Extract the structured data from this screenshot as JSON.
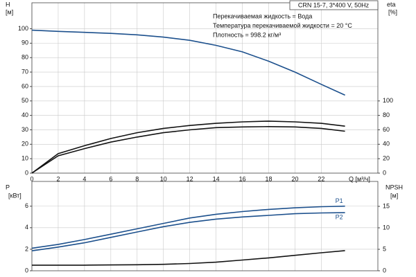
{
  "chart_data": [
    {
      "type": "line",
      "title": "CRN 15-7, 3*400 V, 50Hz",
      "annotations": [
        "Перекачиваемая жидкость = Вода",
        "Температура перекачиваемой жидкости = 20 °C",
        "Плотность = 998.2 кг/м³"
      ],
      "y_label": "H",
      "y_unit": "[м]",
      "y2_label": "eta",
      "y2_unit": "[%]",
      "x_label": "Q [м³/ч]",
      "x": [
        0,
        2,
        4,
        6,
        8,
        10,
        12,
        14,
        16,
        18,
        20,
        22,
        23.8
      ],
      "series": [
        {
          "color": "#1b4f8c",
          "values": [
            99,
            98.2,
            97.5,
            96.8,
            95.8,
            94.2,
            92,
            88.5,
            84,
            77.5,
            70,
            61.5,
            54
          ]
        },
        {
          "color": "#111111",
          "axis": "y2",
          "values": [
            0,
            27,
            38,
            48,
            56,
            62,
            66,
            69,
            71,
            72,
            71,
            69,
            65
          ]
        },
        {
          "color": "#111111",
          "axis": "y2",
          "values": [
            0,
            24,
            34,
            43,
            50,
            56,
            60,
            63,
            64,
            64.5,
            64,
            62,
            58
          ]
        }
      ],
      "xlim": [
        0,
        26.3
      ],
      "ylim": [
        0,
        118
      ],
      "y2lim": [
        0,
        236
      ],
      "xticks": [
        0,
        2,
        4,
        6,
        8,
        10,
        12,
        14,
        16,
        18,
        20,
        22
      ],
      "yticks": [
        0,
        10,
        20,
        30,
        40,
        50,
        60,
        70,
        80,
        90,
        100
      ],
      "y2ticks": [
        0,
        20,
        40,
        60,
        80,
        100
      ],
      "grid": true
    },
    {
      "type": "line",
      "y_label": "P",
      "y_unit": "[кВт]",
      "y2_label": "NPSH",
      "y2_unit": "[м]",
      "x": [
        0,
        2,
        4,
        6,
        8,
        10,
        12,
        14,
        16,
        18,
        20,
        22,
        23.8
      ],
      "series": [
        {
          "name": "P1",
          "color": "#1b4f8c",
          "values": [
            2.1,
            2.45,
            2.9,
            3.4,
            3.9,
            4.4,
            4.9,
            5.25,
            5.5,
            5.7,
            5.85,
            5.95,
            6.0
          ]
        },
        {
          "name": "P2",
          "color": "#1b4f8c",
          "values": [
            1.85,
            2.2,
            2.6,
            3.1,
            3.6,
            4.1,
            4.5,
            4.8,
            5.0,
            5.15,
            5.3,
            5.37,
            5.4
          ]
        },
        {
          "color": "#111111",
          "axis": "y2",
          "values": [
            1.3,
            1.3,
            1.3,
            1.35,
            1.4,
            1.5,
            1.7,
            2.0,
            2.5,
            3.0,
            3.6,
            4.2,
            4.7
          ]
        }
      ],
      "xlim": [
        0,
        26.3
      ],
      "ylim": [
        0,
        8.3
      ],
      "y2lim": [
        0,
        20.8
      ],
      "xticks": [
        0,
        2,
        4,
        6,
        8,
        10,
        12,
        14,
        16,
        18,
        20,
        22
      ],
      "yticks": [
        0,
        2,
        4,
        6
      ],
      "y2ticks": [
        0,
        5,
        10,
        15
      ],
      "grid": true
    }
  ]
}
